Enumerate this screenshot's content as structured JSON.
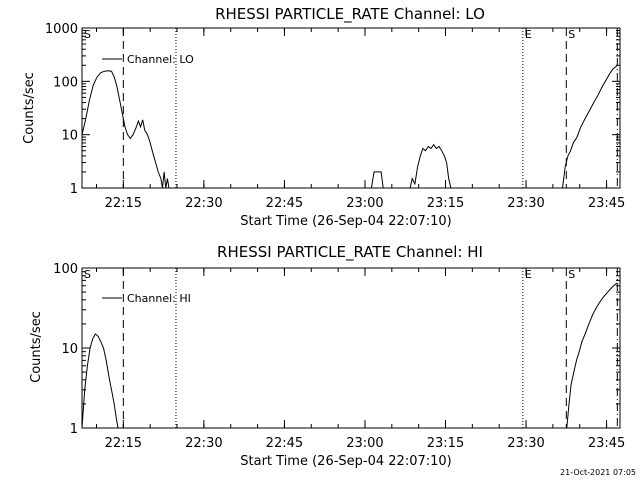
{
  "footer": {
    "timestamp": "21-Oct-2021 07:05"
  },
  "chart_data": [
    {
      "type": "line",
      "title": "RHESSI PARTICLE_RATE Channel: LO",
      "xlabel": "Start Time (26-Sep-04 22:07:10)",
      "ylabel": "Counts/sec",
      "ylog": true,
      "ylim": [
        1,
        1000
      ],
      "xlim_min": [
        0,
        98.8
      ],
      "x_ticks": [
        {
          "t": 8,
          "label": "22:15"
        },
        {
          "t": 23,
          "label": "22:30"
        },
        {
          "t": 38,
          "label": "22:45"
        },
        {
          "t": 53,
          "label": "23:00"
        },
        {
          "t": 68,
          "label": "23:15"
        },
        {
          "t": 83,
          "label": "23:30"
        },
        {
          "t": 98,
          "label": "23:45"
        }
      ],
      "y_ticks": [
        {
          "v": 1,
          "label": "1"
        },
        {
          "v": 10,
          "label": "10"
        },
        {
          "v": 100,
          "label": "100"
        },
        {
          "v": 1000,
          "label": "1000"
        }
      ],
      "legend": {
        "label": "Channel: LO",
        "position": "top-left"
      },
      "markers": [
        {
          "t": 0.3,
          "style": "solid",
          "label": "S"
        },
        {
          "t": 8.0,
          "style": "dashed",
          "label": ""
        },
        {
          "t": 17.8,
          "style": "dotted",
          "label": ""
        },
        {
          "t": 82.4,
          "style": "dotted",
          "label": "E"
        },
        {
          "t": 90.5,
          "style": "dashed",
          "label": "S"
        },
        {
          "t": 100.0,
          "style": "dashdot",
          "label": ""
        }
      ],
      "series": [
        {
          "name": "Channel: LO",
          "points": [
            [
              0.3,
              10
            ],
            [
              1.0,
              20
            ],
            [
              1.7,
              45
            ],
            [
              2.4,
              85
            ],
            [
              3.1,
              120
            ],
            [
              3.8,
              145
            ],
            [
              4.5,
              155
            ],
            [
              5.2,
              158
            ],
            [
              5.8,
              155
            ],
            [
              6.3,
              120
            ],
            [
              6.8,
              80
            ],
            [
              7.3,
              45
            ],
            [
              7.8,
              25
            ],
            [
              8.3,
              14
            ],
            [
              8.8,
              10
            ],
            [
              9.3,
              8.5
            ],
            [
              9.8,
              10
            ],
            [
              10.3,
              13
            ],
            [
              10.8,
              18
            ],
            [
              11.2,
              14
            ],
            [
              11.6,
              19
            ],
            [
              12.0,
              12
            ],
            [
              12.5,
              10
            ],
            [
              13.0,
              7
            ],
            [
              13.5,
              4.5
            ],
            [
              14.0,
              3
            ],
            [
              14.5,
              2
            ],
            [
              15.0,
              1.5
            ],
            [
              15.3,
              1
            ],
            [
              15.6,
              2
            ],
            [
              15.9,
              1
            ],
            [
              16.2,
              1.5
            ],
            [
              16.5,
              1
            ]
          ]
        },
        {
          "name": "",
          "points": [
            [
              54.2,
              1
            ],
            [
              54.7,
              2
            ],
            [
              56.0,
              2
            ],
            [
              56.4,
              1
            ]
          ]
        },
        {
          "name": "",
          "points": [
            [
              61.4,
              1
            ],
            [
              61.8,
              1.5
            ],
            [
              62.3,
              1.2
            ],
            [
              62.8,
              2.5
            ],
            [
              63.3,
              4
            ],
            [
              63.8,
              5.5
            ],
            [
              64.3,
              5
            ],
            [
              64.8,
              6
            ],
            [
              65.3,
              5.5
            ],
            [
              65.8,
              6.5
            ],
            [
              66.3,
              5.5
            ],
            [
              66.8,
              6
            ],
            [
              67.3,
              5
            ],
            [
              67.8,
              4
            ],
            [
              68.2,
              3
            ],
            [
              68.6,
              1.5
            ],
            [
              69.0,
              1
            ]
          ]
        },
        {
          "name": "",
          "points": [
            [
              89.8,
              1
            ],
            [
              90.3,
              2.5
            ],
            [
              90.8,
              4
            ],
            [
              91.3,
              5
            ],
            [
              91.8,
              7
            ],
            [
              92.5,
              9
            ],
            [
              93.2,
              14
            ],
            [
              94.0,
              20
            ],
            [
              94.8,
              28
            ],
            [
              95.6,
              40
            ],
            [
              96.4,
              55
            ],
            [
              97.2,
              80
            ],
            [
              98.0,
              110
            ],
            [
              98.6,
              140
            ],
            [
              99.2,
              170
            ],
            [
              99.9,
              195
            ]
          ]
        }
      ]
    },
    {
      "type": "line",
      "title": "RHESSI PARTICLE_RATE Channel: HI",
      "xlabel": "Start Time (26-Sep-04 22:07:10)",
      "ylabel": "Counts/sec",
      "ylog": true,
      "ylim": [
        1,
        100
      ],
      "x_ticks": [
        {
          "t": 8,
          "label": "22:15"
        },
        {
          "t": 23,
          "label": "22:30"
        },
        {
          "t": 38,
          "label": "22:45"
        },
        {
          "t": 53,
          "label": "23:00"
        },
        {
          "t": 68,
          "label": "23:15"
        },
        {
          "t": 83,
          "label": "23:30"
        },
        {
          "t": 98,
          "label": "23:45"
        }
      ],
      "y_ticks": [
        {
          "v": 1,
          "label": "1"
        },
        {
          "v": 10,
          "label": "10"
        },
        {
          "v": 100,
          "label": "100"
        }
      ],
      "legend": {
        "label": "Channel: HI",
        "position": "top-left"
      },
      "markers": [
        {
          "t": 0.3,
          "style": "solid",
          "label": "S"
        },
        {
          "t": 8.0,
          "style": "dashed",
          "label": ""
        },
        {
          "t": 17.8,
          "style": "dotted",
          "label": ""
        },
        {
          "t": 82.4,
          "style": "dotted",
          "label": "E"
        },
        {
          "t": 90.5,
          "style": "dashed",
          "label": "S"
        },
        {
          "t": 100.0,
          "style": "dashdot",
          "label": ""
        }
      ],
      "series": [
        {
          "name": "Channel: HI",
          "points": [
            [
              0.3,
              1
            ],
            [
              0.8,
              3
            ],
            [
              1.3,
              6
            ],
            [
              1.8,
              10
            ],
            [
              2.3,
              13
            ],
            [
              2.8,
              15
            ],
            [
              3.3,
              14
            ],
            [
              3.8,
              12
            ],
            [
              4.3,
              10
            ],
            [
              4.8,
              7
            ],
            [
              5.3,
              4.5
            ],
            [
              5.8,
              3
            ],
            [
              6.3,
              2
            ],
            [
              6.7,
              1.3
            ],
            [
              7.0,
              1
            ]
          ]
        },
        {
          "name": "",
          "points": [
            [
              90.6,
              1
            ],
            [
              91.0,
              2
            ],
            [
              91.4,
              3.5
            ],
            [
              91.9,
              5
            ],
            [
              92.4,
              7
            ],
            [
              92.9,
              9
            ],
            [
              93.4,
              12
            ],
            [
              94.0,
              15
            ],
            [
              94.7,
              20
            ],
            [
              95.4,
              26
            ],
            [
              96.1,
              32
            ],
            [
              96.8,
              38
            ],
            [
              97.5,
              44
            ],
            [
              98.2,
              50
            ],
            [
              99.0,
              57
            ],
            [
              99.9,
              65
            ]
          ]
        }
      ]
    }
  ]
}
